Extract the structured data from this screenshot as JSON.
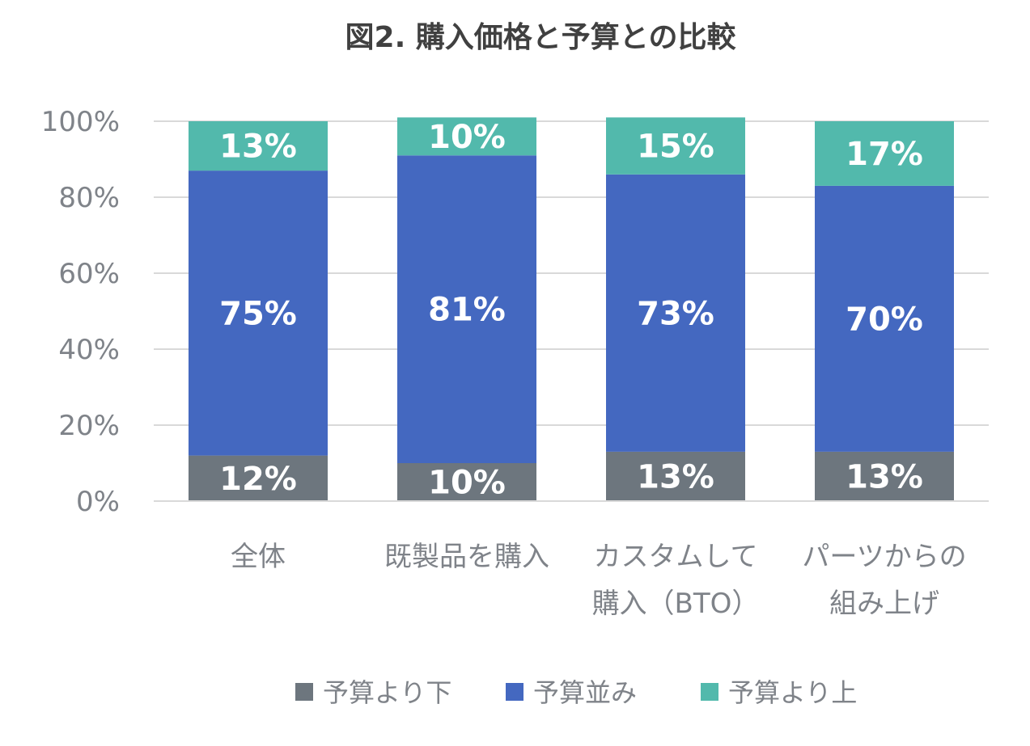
{
  "chart_data": {
    "type": "bar",
    "stacked": true,
    "title": "図2. 購入価格と予算との比較",
    "categories": [
      [
        "全体"
      ],
      [
        "既製品を購入"
      ],
      [
        "カスタムして",
        "購入（BTO）"
      ],
      [
        "パーツからの",
        "組み上げ"
      ]
    ],
    "series": [
      {
        "name": "予算より下",
        "color": "#6d767e",
        "values": [
          12,
          10,
          13,
          13
        ]
      },
      {
        "name": "予算並み",
        "color": "#4468c0",
        "values": [
          75,
          81,
          73,
          70
        ]
      },
      {
        "name": "予算より上",
        "color": "#52b9ac",
        "values": [
          13,
          10,
          15,
          17
        ]
      }
    ],
    "ylim": [
      0,
      100
    ],
    "yticks": [
      "0%",
      "20%",
      "40%",
      "60%",
      "80%",
      "100%"
    ],
    "value_suffix": "%",
    "grid": true,
    "legend_position": "bottom"
  }
}
